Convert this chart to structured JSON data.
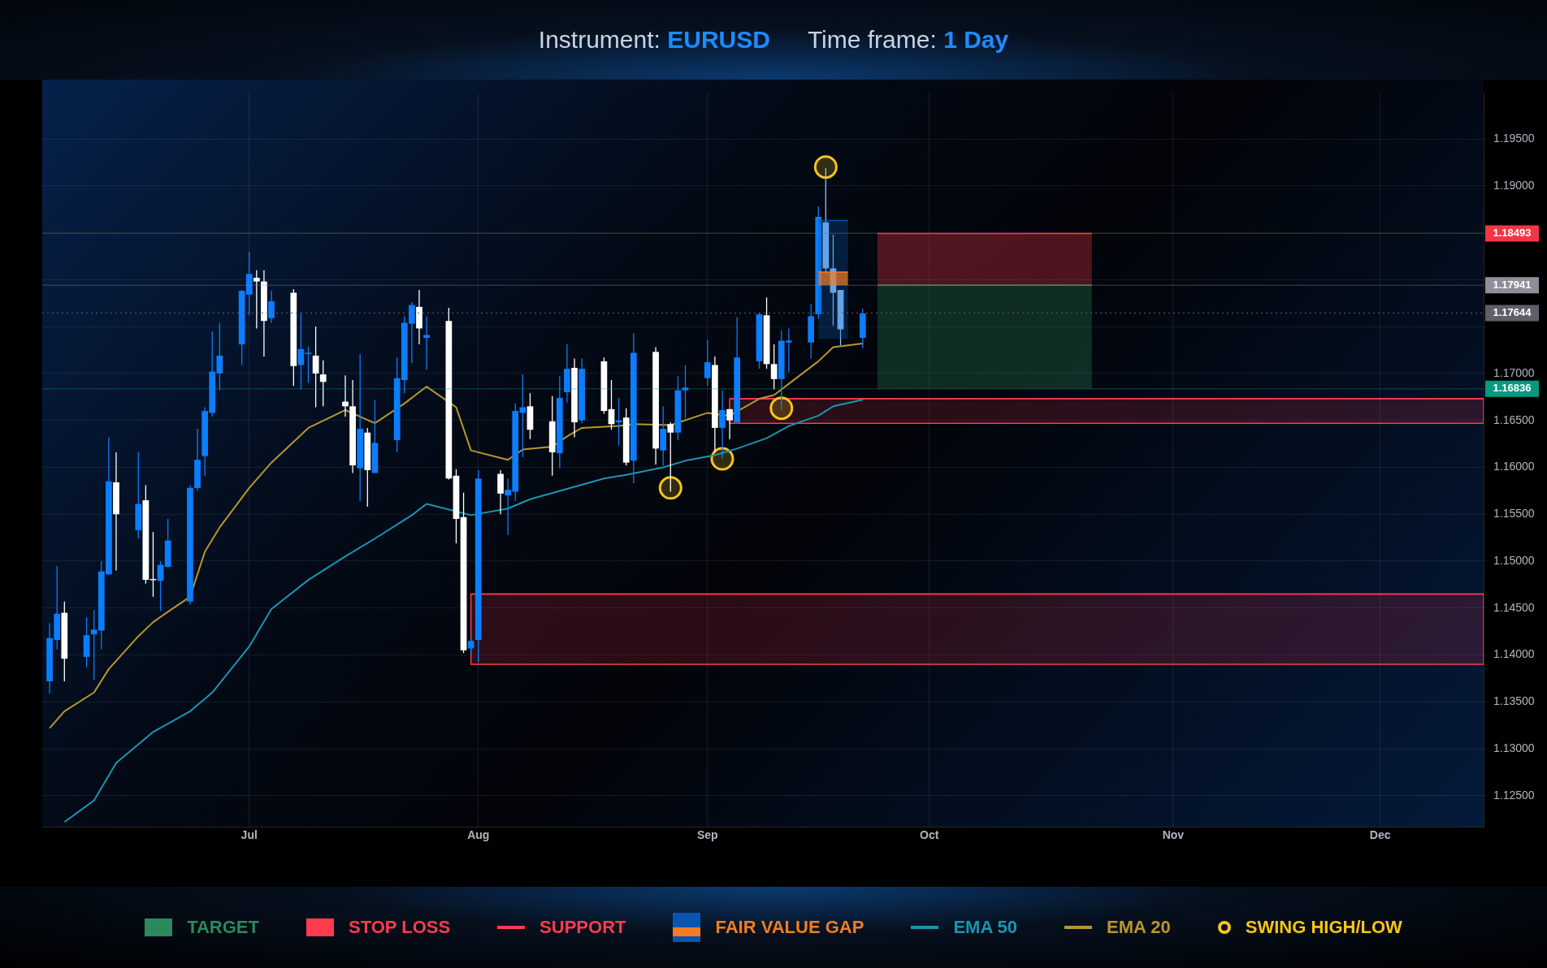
{
  "chart_data": {
    "type": "candlestick",
    "title": "Instrument: EURUSD",
    "subtitle": "Time frame: 1 Day",
    "x": [
      "--06-04",
      "--06-05",
      "--06-06",
      "--06-09",
      "--06-10",
      "--06-11",
      "--06-12",
      "--06-13",
      "--06-16",
      "--06-17",
      "--06-18",
      "--06-19",
      "--06-20",
      "--06-23",
      "--06-24",
      "--06-25",
      "--06-26",
      "--06-27",
      "--06-30",
      "--07-01",
      "--07-02",
      "--07-03",
      "--07-04",
      "--07-07",
      "--07-08",
      "--07-09",
      "--07-10",
      "--07-11",
      "--07-14",
      "--07-15",
      "--07-16",
      "--07-17",
      "--07-18",
      "--07-21",
      "--07-22",
      "--07-23",
      "--07-24",
      "--07-25",
      "--07-28",
      "--07-29",
      "--07-30",
      "--07-31",
      "--08-01",
      "--08-04",
      "--08-05",
      "--08-06",
      "--08-07",
      "--08-08",
      "--08-11",
      "--08-12",
      "--08-13",
      "--08-14",
      "--08-15",
      "--08-18",
      "--08-19",
      "--08-20",
      "--08-21",
      "--08-22",
      "--08-25",
      "--08-26",
      "--08-27",
      "--08-28",
      "--08-29",
      "--09-01",
      "--09-02",
      "--09-03",
      "--09-04",
      "--09-05",
      "--09-08",
      "--09-09",
      "--09-10",
      "--09-11",
      "--09-12",
      "--09-15",
      "--09-16",
      "--09-17",
      "--09-18",
      "--09-19",
      "--09-22"
    ],
    "ohlc": [
      [
        1.1372,
        1.1434,
        1.1359,
        1.1418
      ],
      [
        1.1416,
        1.1495,
        1.1406,
        1.1444
      ],
      [
        1.1445,
        1.1457,
        1.1372,
        1.1396
      ],
      [
        1.1398,
        1.144,
        1.1387,
        1.1421
      ],
      [
        1.1422,
        1.1448,
        1.1373,
        1.1427
      ],
      [
        1.1426,
        1.15,
        1.1406,
        1.1489
      ],
      [
        1.1486,
        1.1632,
        1.1485,
        1.1585
      ],
      [
        1.1584,
        1.1616,
        1.149,
        1.155
      ],
      [
        1.1533,
        1.1616,
        1.1524,
        1.1561
      ],
      [
        1.1565,
        1.1581,
        1.1476,
        1.148
      ],
      [
        1.1481,
        1.1531,
        1.1462,
        1.148
      ],
      [
        1.1479,
        1.15,
        1.1447,
        1.1496
      ],
      [
        1.1494,
        1.1545,
        1.1493,
        1.1522
      ],
      [
        1.1457,
        1.1581,
        1.1454,
        1.1578
      ],
      [
        1.1578,
        1.1641,
        1.1575,
        1.1608
      ],
      [
        1.1612,
        1.1664,
        1.1591,
        1.166
      ],
      [
        1.1658,
        1.1745,
        1.1654,
        1.1702
      ],
      [
        1.17,
        1.1754,
        1.1682,
        1.1719
      ],
      [
        1.1731,
        1.1789,
        1.1709,
        1.1788
      ],
      [
        1.1784,
        1.183,
        1.1762,
        1.1806
      ],
      [
        1.1802,
        1.181,
        1.1748,
        1.1798
      ],
      [
        1.1798,
        1.181,
        1.1718,
        1.1756
      ],
      [
        1.1759,
        1.1788,
        1.1754,
        1.1777
      ],
      [
        1.1786,
        1.179,
        1.1687,
        1.1708
      ],
      [
        1.1709,
        1.1765,
        1.1683,
        1.1726
      ],
      [
        1.1721,
        1.1729,
        1.169,
        1.1722
      ],
      [
        1.1719,
        1.175,
        1.1664,
        1.17
      ],
      [
        1.1699,
        1.1714,
        1.1665,
        1.1691
      ],
      [
        1.167,
        1.1698,
        1.1654,
        1.1665
      ],
      [
        1.1665,
        1.1693,
        1.1594,
        1.1602
      ],
      [
        1.1599,
        1.1721,
        1.1564,
        1.1641
      ],
      [
        1.1637,
        1.1642,
        1.1558,
        1.1597
      ],
      [
        1.1594,
        1.1672,
        1.1594,
        1.1626
      ],
      [
        1.1629,
        1.1717,
        1.1616,
        1.1695
      ],
      [
        1.1693,
        1.1761,
        1.1679,
        1.1754
      ],
      [
        1.1753,
        1.1776,
        1.1711,
        1.1773
      ],
      [
        1.1771,
        1.1789,
        1.1731,
        1.1748
      ],
      [
        1.1738,
        1.1761,
        1.1704,
        1.1741
      ],
      [
        1.1756,
        1.177,
        1.1587,
        1.1588
      ],
      [
        1.1591,
        1.1598,
        1.1519,
        1.1545
      ],
      [
        1.1547,
        1.1573,
        1.1402,
        1.1405
      ],
      [
        1.1407,
        1.1418,
        1.14,
        1.1415
      ],
      [
        1.1416,
        1.1597,
        1.1392,
        1.1588
      ],
      [
        1.1593,
        1.1597,
        1.155,
        1.1572
      ],
      [
        1.157,
        1.1588,
        1.1528,
        1.1576
      ],
      [
        1.1574,
        1.1668,
        1.1564,
        1.166
      ],
      [
        1.1658,
        1.1699,
        1.1611,
        1.1664
      ],
      [
        1.1665,
        1.1679,
        1.163,
        1.164
      ],
      [
        1.1649,
        1.1676,
        1.1591,
        1.1616
      ],
      [
        1.1615,
        1.1697,
        1.1599,
        1.1674
      ],
      [
        1.168,
        1.1731,
        1.1669,
        1.1705
      ],
      [
        1.1706,
        1.1716,
        1.1632,
        1.1648
      ],
      [
        1.165,
        1.1716,
        1.1647,
        1.1705
      ],
      [
        1.1713,
        1.1717,
        1.1657,
        1.166
      ],
      [
        1.1662,
        1.1693,
        1.164,
        1.1646
      ],
      [
        1.1648,
        1.1674,
        1.1623,
        1.165
      ],
      [
        1.1653,
        1.1663,
        1.1602,
        1.1605
      ],
      [
        1.1607,
        1.1743,
        1.1583,
        1.1722
      ],
      [
        1.1723,
        1.1728,
        1.1603,
        1.162
      ],
      [
        1.1618,
        1.1665,
        1.1602,
        1.1641
      ],
      [
        1.1646,
        1.1648,
        1.1574,
        1.1637
      ],
      [
        1.1637,
        1.1697,
        1.1629,
        1.1682
      ],
      [
        1.1682,
        1.1709,
        1.1652,
        1.1685
      ],
      [
        1.1695,
        1.1736,
        1.1687,
        1.1712
      ],
      [
        1.1709,
        1.1718,
        1.1616,
        1.1642
      ],
      [
        1.1642,
        1.1682,
        1.1609,
        1.1661
      ],
      [
        1.1662,
        1.1662,
        1.163,
        1.165
      ],
      [
        1.1648,
        1.176,
        1.1648,
        1.1717
      ],
      [
        1.1713,
        1.1765,
        1.1705,
        1.1763
      ],
      [
        1.1762,
        1.1781,
        1.1705,
        1.171
      ],
      [
        1.171,
        1.1731,
        1.1683,
        1.1694
      ],
      [
        1.1694,
        1.1746,
        1.1661,
        1.1735
      ],
      [
        1.1733,
        1.1748,
        1.1701,
        1.1735
      ],
      [
        1.1733,
        1.1774,
        1.1716,
        1.1761
      ],
      [
        1.1763,
        1.1878,
        1.1758,
        1.1867
      ],
      [
        1.1861,
        1.1919,
        1.1808,
        1.1812
      ],
      [
        1.1812,
        1.1848,
        1.1751,
        1.1786
      ],
      [
        1.1789,
        1.1789,
        1.173,
        1.1747
      ],
      [
        1.1738,
        1.1769,
        1.1727,
        1.1764
      ]
    ],
    "colors": [
      "#0c7dfc",
      "#0c7dfc",
      "#ffffff",
      "#0c7dfc",
      "#0c7dfc",
      "#0c7dfc",
      "#0c7dfc",
      "#ffffff",
      "#0c7dfc",
      "#ffffff",
      "#ffffff",
      "#0c7dfc",
      "#0c7dfc",
      "#0c7dfc",
      "#0c7dfc",
      "#0c7dfc",
      "#0c7dfc",
      "#0c7dfc",
      "#0c7dfc",
      "#0c7dfc",
      "#ffffff",
      "#ffffff",
      "#0c7dfc",
      "#ffffff",
      "#0c7dfc",
      "#0c7dfc",
      "#ffffff",
      "#ffffff",
      "#ffffff",
      "#ffffff",
      "#0c7dfc",
      "#ffffff",
      "#0c7dfc",
      "#0c7dfc",
      "#0c7dfc",
      "#0c7dfc",
      "#ffffff",
      "#0c7dfc",
      "#ffffff",
      "#ffffff",
      "#ffffff",
      "#0c7dfc",
      "#0c7dfc",
      "#ffffff",
      "#0c7dfc",
      "#0c7dfc",
      "#0c7dfc",
      "#ffffff",
      "#ffffff",
      "#0c7dfc",
      "#0c7dfc",
      "#ffffff",
      "#0c7dfc",
      "#ffffff",
      "#ffffff",
      "#0c7dfc",
      "#ffffff",
      "#0c7dfc",
      "#ffffff",
      "#0c7dfc",
      "#ffffff",
      "#0c7dfc",
      "#0c7dfc",
      "#0c7dfc",
      "#ffffff",
      "#0c7dfc",
      "#ffffff",
      "#0c7dfc",
      "#0c7dfc",
      "#ffffff",
      "#ffffff",
      "#0c7dfc",
      "#0c7dfc",
      "#0c7dfc",
      "#0c7dfc",
      "#8cc4ff",
      "#8cc4ff",
      "#8cc4ff",
      "#0c7dfc"
    ],
    "series": [
      {
        "name": "TARGET",
        "type": "line",
        "color": "#2a8a5c",
        "x": [
          "--09-24",
          "--10-23"
        ],
        "values": [
          1.17941,
          1.17941
        ],
        "lower": [
          1.16836,
          1.16836
        ],
        "upper": [
          1.17941,
          1.17941
        ]
      },
      {
        "name": "STOP LOSS",
        "type": "line",
        "color": "#ff3b4e",
        "x": [
          "--09-24",
          "--10-23"
        ],
        "values": [
          1.18493,
          1.18493
        ],
        "lower": [
          1.17941,
          1.17941
        ],
        "upper": [
          1.18493,
          1.18493
        ]
      },
      {
        "name": "SUPPORT",
        "type": "line",
        "color": "#ff3b4e",
        "line_style": "solid",
        "x": [
          "--09-04",
          "--12-15"
        ],
        "values": [
          1.1673,
          1.1673
        ],
        "lower": [
          1.1647,
          1.1647
        ],
        "upper": [
          1.1673,
          1.1673
        ]
      },
      {
        "type": "line",
        "color": "#ff3b4e",
        "line_style": "solid",
        "x": [
          "--07-31",
          "--12-15"
        ],
        "values": [
          1.1465,
          1.1465
        ],
        "lower": [
          1.139,
          1.139
        ],
        "upper": [
          1.1465,
          1.1465
        ]
      },
      {
        "name": "FAIR VALUE GAP",
        "type": "line",
        "color": "#0a55b0",
        "x": [
          "--09-16",
          "--09-20"
        ],
        "values": [
          1.1863,
          1.1863
        ],
        "lower": [
          1.1737,
          1.1737
        ],
        "upper": [
          1.1863,
          1.1863
        ]
      },
      {
        "type": "line",
        "color": "#f57c1f",
        "x": [
          "--09-16",
          "--09-20"
        ],
        "values": [
          1.1808,
          1.1808
        ],
        "lower": [
          1.1794,
          1.1794
        ],
        "upper": [
          1.1808,
          1.1808
        ]
      },
      {
        "name": "EMA 50",
        "type": "line",
        "color": "#1796b0",
        "x": [
          "--06-06",
          "--06-10",
          "--06-13",
          "--06-18",
          "--06-23",
          "--06-26",
          "--07-01",
          "--07-04",
          "--07-09",
          "--07-14",
          "--07-18",
          "--07-23",
          "--07-25",
          "--07-29",
          "--07-31",
          "--08-05",
          "--08-08",
          "--08-13",
          "--08-18",
          "--08-21",
          "--08-26",
          "--08-29",
          "--09-02",
          "--09-05",
          "--09-09",
          "--09-12",
          "--09-16",
          "--09-18",
          "--09-22"
        ],
        "values": [
          1.1222,
          1.1245,
          1.1285,
          1.1318,
          1.134,
          1.136,
          1.1409,
          1.1449,
          1.148,
          1.1505,
          1.1524,
          1.1549,
          1.1561,
          null,
          1.1549,
          1.1556,
          1.1566,
          1.1577,
          1.1588,
          1.1592,
          1.16,
          1.1607,
          1.1613,
          1.162,
          1.1631,
          1.1644,
          1.1655,
          1.1665,
          1.1672
        ]
      },
      {
        "name": "EMA 20",
        "type": "line",
        "color": "#b8962e",
        "x": [
          "--06-04",
          "--06-06",
          "--06-10",
          "--06-12",
          "--06-16",
          "--06-18",
          "--06-20",
          "--06-23",
          "--06-25",
          "--06-27",
          "--07-01",
          "--07-04",
          "--07-09",
          "--07-14",
          "--07-18",
          "--07-22",
          "--07-25",
          "--07-29",
          "--07-31",
          "--08-05",
          "--08-07",
          "--08-11",
          "--08-13",
          "--08-15",
          "--08-20",
          "--08-22",
          "--08-27",
          "--09-01",
          "--09-04",
          "--09-08",
          "--09-10",
          "--09-12",
          "--09-16",
          "--09-18",
          "--09-22"
        ],
        "values": [
          1.1322,
          1.134,
          1.136,
          1.1385,
          1.142,
          1.1435,
          1.1446,
          1.1462,
          1.151,
          1.1536,
          1.1578,
          1.1605,
          1.1642,
          1.1661,
          1.1647,
          1.1668,
          1.1686,
          1.1664,
          1.1618,
          1.1608,
          1.1619,
          1.1622,
          1.1633,
          1.1642,
          1.1644,
          1.1646,
          1.1645,
          1.1658,
          1.1655,
          1.1673,
          1.1677,
          1.1689,
          1.1713,
          1.1728,
          1.1732
        ]
      },
      {
        "name": "SWING HIGH/LOW",
        "type": "scatter",
        "color": "#f5c518",
        "marker": "circle",
        "x": [
          "--08-27",
          "--09-03",
          "--09-11",
          "--09-17"
        ],
        "values": [
          1.1578,
          1.1609,
          1.1663,
          1.192
        ]
      }
    ],
    "ref_lines": [
      {
        "axis": "y",
        "value": 1.18493,
        "label": "1.18493",
        "color": "#f23645"
      },
      {
        "axis": "y",
        "value": 1.17941,
        "label": "1.17941",
        "color": "#8c8f99"
      },
      {
        "axis": "y",
        "value": 1.17644,
        "label": "1.17644",
        "color": "#5d606b",
        "line_style": "dotted"
      },
      {
        "axis": "y",
        "value": 1.16836,
        "label": "1.16836",
        "color": "#089981"
      }
    ],
    "xlim": [
      "--06-03",
      "--12-15"
    ],
    "xticks": [
      {
        "value": "--07-01",
        "label": "Jul"
      },
      {
        "value": "--08-01",
        "label": "Aug"
      },
      {
        "value": "--09-01",
        "label": "Sep"
      },
      {
        "value": "--10-01",
        "label": "Oct"
      },
      {
        "value": "--11-03",
        "label": "Nov"
      },
      {
        "value": "--12-01",
        "label": "Dec"
      }
    ],
    "ylim": [
      1.1217,
      1.1999
    ],
    "yticks": [
      {
        "value": 1.125,
        "label": "1.12500"
      },
      {
        "value": 1.13,
        "label": "1.13000"
      },
      {
        "value": 1.135,
        "label": "1.13500"
      },
      {
        "value": 1.14,
        "label": "1.14000"
      },
      {
        "value": 1.145,
        "label": "1.14500"
      },
      {
        "value": 1.15,
        "label": "1.15000"
      },
      {
        "value": 1.155,
        "label": "1.15500"
      },
      {
        "value": 1.16,
        "label": "1.16000"
      },
      {
        "value": 1.165,
        "label": "1.16500"
      },
      {
        "value": 1.17,
        "label": "1.17000"
      },
      {
        "value": 1.175,
        "label": null
      },
      {
        "value": 1.18,
        "label": null
      },
      {
        "value": 1.185,
        "label": null
      },
      {
        "value": 1.19,
        "label": "1.19000"
      },
      {
        "value": 1.195,
        "label": "1.19500"
      }
    ],
    "grid": true,
    "legend": "bottom"
  }
}
